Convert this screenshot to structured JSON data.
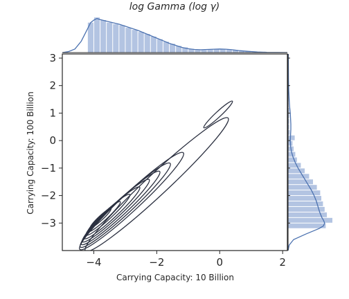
{
  "chart_data": {
    "type": "jointplot-kde",
    "title": "log Gamma (log γ)",
    "xlabel": "Carrying Capacity: 10 Billion",
    "ylabel": "Carrying Capacity: 100 Billion",
    "xlim": [
      -5.0,
      2.15
    ],
    "ylim": [
      -4.0,
      3.15
    ],
    "xticks": [
      -4,
      -2,
      0,
      2
    ],
    "yticks": [
      -3,
      -2,
      -1,
      0,
      1,
      2,
      3
    ],
    "xtick_labels": [
      "−4",
      "−2",
      "0",
      "2"
    ],
    "ytick_labels": [
      "−3",
      "−2",
      "−1",
      "0",
      "1",
      "2",
      "3"
    ],
    "contour_color": "#2b3040",
    "contours": [
      {
        "level": 1,
        "center": [
          -2.0,
          -1.6
        ],
        "angle_deg": 43,
        "rx": 3.1,
        "ry": 0.34
      },
      {
        "level": 2,
        "center": [
          -2.8,
          -2.2
        ],
        "angle_deg": 43,
        "rx": 2.25,
        "ry": 0.28
      },
      {
        "level": 3,
        "center": [
          -3.0,
          -2.35
        ],
        "angle_deg": 43,
        "rx": 1.95,
        "ry": 0.25
      },
      {
        "level": 4,
        "center": [
          -3.15,
          -2.45
        ],
        "angle_deg": 43,
        "rx": 1.7,
        "ry": 0.22
      },
      {
        "level": 5,
        "center": [
          -3.3,
          -2.55
        ],
        "angle_deg": 43,
        "rx": 1.45,
        "ry": 0.19
      },
      {
        "level": 6,
        "center": [
          -3.42,
          -2.63
        ],
        "angle_deg": 43,
        "rx": 1.2,
        "ry": 0.16
      },
      {
        "level": 7,
        "center": [
          -3.55,
          -2.7
        ],
        "angle_deg": 43,
        "rx": 0.95,
        "ry": 0.13
      },
      {
        "level": 8,
        "center": [
          -3.67,
          -2.77
        ],
        "angle_deg": 43,
        "rx": 0.7,
        "ry": 0.1
      },
      {
        "level": 9,
        "center": [
          -3.78,
          -2.82
        ],
        "angle_deg": 43,
        "rx": 0.45,
        "ry": 0.07
      },
      {
        "level": 1,
        "center": [
          -0.05,
          0.95
        ],
        "angle_deg": 43,
        "rx": 0.62,
        "ry": 0.085
      }
    ],
    "marginal_x": {
      "hist_color": "#b3c4e2",
      "kde_color": "#4c72b0",
      "bins": [
        {
          "x0": -4.2,
          "x1": -4.0,
          "count": 58
        },
        {
          "x0": -4.0,
          "x1": -3.8,
          "count": 68
        },
        {
          "x0": -3.8,
          "x1": -3.6,
          "count": 63
        },
        {
          "x0": -3.6,
          "x1": -3.4,
          "count": 58
        },
        {
          "x0": -3.4,
          "x1": -3.2,
          "count": 55
        },
        {
          "x0": -3.2,
          "x1": -3.0,
          "count": 53
        },
        {
          "x0": -3.0,
          "x1": -2.8,
          "count": 48
        },
        {
          "x0": -2.8,
          "x1": -2.6,
          "count": 44
        },
        {
          "x0": -2.6,
          "x1": -2.4,
          "count": 40
        },
        {
          "x0": -2.4,
          "x1": -2.2,
          "count": 36
        },
        {
          "x0": -2.2,
          "x1": -2.0,
          "count": 31
        },
        {
          "x0": -2.0,
          "x1": -1.8,
          "count": 26
        },
        {
          "x0": -1.8,
          "x1": -1.6,
          "count": 21
        },
        {
          "x0": -1.6,
          "x1": -1.4,
          "count": 17
        },
        {
          "x0": -1.4,
          "x1": -1.2,
          "count": 13
        },
        {
          "x0": -1.2,
          "x1": -1.0,
          "count": 10
        },
        {
          "x0": -1.0,
          "x1": -0.8,
          "count": 7
        },
        {
          "x0": -0.8,
          "x1": -0.6,
          "count": 5
        },
        {
          "x0": -0.6,
          "x1": -0.4,
          "count": 5
        },
        {
          "x0": -0.4,
          "x1": -0.2,
          "count": 6
        },
        {
          "x0": -0.2,
          "x1": 0.0,
          "count": 6
        },
        {
          "x0": 0.0,
          "x1": 0.2,
          "count": 7
        },
        {
          "x0": 0.2,
          "x1": 0.4,
          "count": 6
        },
        {
          "x0": 0.4,
          "x1": 0.6,
          "count": 5
        },
        {
          "x0": 0.6,
          "x1": 0.8,
          "count": 3
        },
        {
          "x0": 0.8,
          "x1": 1.0,
          "count": 2
        },
        {
          "x0": 1.0,
          "x1": 1.2,
          "count": 1
        },
        {
          "x0": 1.2,
          "x1": 1.4,
          "count": 1
        }
      ],
      "kde": [
        [
          -5.0,
          0
        ],
        [
          -4.8,
          2
        ],
        [
          -4.6,
          7
        ],
        [
          -4.4,
          22
        ],
        [
          -4.2,
          46
        ],
        [
          -4.1,
          58
        ],
        [
          -4.0,
          63
        ],
        [
          -3.9,
          66
        ],
        [
          -3.8,
          64
        ],
        [
          -3.6,
          61
        ],
        [
          -3.4,
          58
        ],
        [
          -3.2,
          55
        ],
        [
          -3.0,
          51
        ],
        [
          -2.8,
          47
        ],
        [
          -2.6,
          43
        ],
        [
          -2.4,
          38
        ],
        [
          -2.2,
          33
        ],
        [
          -2.0,
          28
        ],
        [
          -1.8,
          23
        ],
        [
          -1.6,
          18
        ],
        [
          -1.4,
          14
        ],
        [
          -1.2,
          10
        ],
        [
          -1.0,
          7.5
        ],
        [
          -0.8,
          6
        ],
        [
          -0.6,
          5.5
        ],
        [
          -0.4,
          6
        ],
        [
          -0.2,
          6.5
        ],
        [
          0.0,
          7
        ],
        [
          0.2,
          6.5
        ],
        [
          0.4,
          5.5
        ],
        [
          0.6,
          4
        ],
        [
          0.8,
          3
        ],
        [
          1.0,
          2
        ],
        [
          1.2,
          1.2
        ],
        [
          1.5,
          0.6
        ],
        [
          2.15,
          0.1
        ]
      ],
      "max": 75
    },
    "marginal_y": {
      "hist_color": "#b3c4e2",
      "kde_color": "#4c72b0",
      "bins": [
        {
          "y0": -3.2,
          "y1": -3.0,
          "count": 68
        },
        {
          "y0": -3.0,
          "y1": -2.8,
          "count": 80
        },
        {
          "y0": -2.8,
          "y1": -2.6,
          "count": 70
        },
        {
          "y0": -2.6,
          "y1": -2.4,
          "count": 66
        },
        {
          "y0": -2.4,
          "y1": -2.2,
          "count": 63
        },
        {
          "y0": -2.2,
          "y1": -2.0,
          "count": 60
        },
        {
          "y0": -2.0,
          "y1": -1.8,
          "count": 58
        },
        {
          "y0": -1.8,
          "y1": -1.6,
          "count": 52
        },
        {
          "y0": -1.6,
          "y1": -1.4,
          "count": 45
        },
        {
          "y0": -1.4,
          "y1": -1.2,
          "count": 38
        },
        {
          "y0": -1.2,
          "y1": -1.0,
          "count": 30
        },
        {
          "y0": -1.0,
          "y1": -0.8,
          "count": 23
        },
        {
          "y0": -0.8,
          "y1": -0.6,
          "count": 16
        },
        {
          "y0": -0.6,
          "y1": -0.4,
          "count": 13
        },
        {
          "y0": -0.4,
          "y1": -0.2,
          "count": 10
        },
        {
          "y0": -0.2,
          "y1": 0.0,
          "count": 8
        },
        {
          "y0": 0.0,
          "y1": 0.2,
          "count": 12
        },
        {
          "y0": 0.2,
          "y1": 0.4,
          "count": 3
        },
        {
          "y0": 0.4,
          "y1": 0.6,
          "count": 2
        },
        {
          "y0": 0.6,
          "y1": 0.8,
          "count": 2
        },
        {
          "y0": 0.8,
          "y1": 1.0,
          "count": 2
        },
        {
          "y0": 1.0,
          "y1": 1.2,
          "count": 2
        },
        {
          "y0": 1.2,
          "y1": 1.4,
          "count": 1
        },
        {
          "y0": 1.4,
          "y1": 1.6,
          "count": 1
        }
      ],
      "kde": [
        [
          -4.0,
          0
        ],
        [
          -3.8,
          2
        ],
        [
          -3.6,
          10
        ],
        [
          -3.4,
          32
        ],
        [
          -3.2,
          56
        ],
        [
          -3.1,
          64
        ],
        [
          -3.0,
          66
        ],
        [
          -2.9,
          64
        ],
        [
          -2.8,
          61
        ],
        [
          -2.6,
          57
        ],
        [
          -2.4,
          54
        ],
        [
          -2.2,
          51
        ],
        [
          -2.0,
          47
        ],
        [
          -1.8,
          42
        ],
        [
          -1.6,
          36
        ],
        [
          -1.4,
          30
        ],
        [
          -1.2,
          24
        ],
        [
          -1.0,
          18
        ],
        [
          -0.8,
          13
        ],
        [
          -0.6,
          9
        ],
        [
          -0.4,
          6
        ],
        [
          -0.2,
          4.5
        ],
        [
          0.0,
          4
        ],
        [
          0.2,
          4.5
        ],
        [
          0.4,
          5
        ],
        [
          0.6,
          5
        ],
        [
          0.8,
          4.5
        ],
        [
          1.0,
          4
        ],
        [
          1.2,
          3
        ],
        [
          1.4,
          2.2
        ],
        [
          1.8,
          1.2
        ],
        [
          2.2,
          0.8
        ],
        [
          2.6,
          0.6
        ],
        [
          3.15,
          0.5
        ]
      ],
      "max": 80
    }
  }
}
